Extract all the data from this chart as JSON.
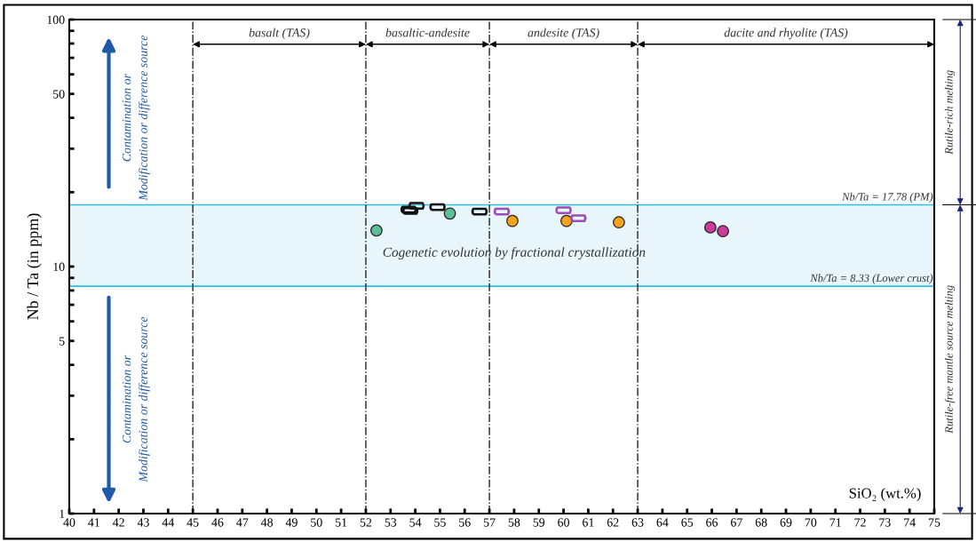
{
  "chart_data": {
    "type": "scatter",
    "xlabel": "SiO₂ (wt.%)",
    "ylabel": "Nb / Ta (in ppm)",
    "log": "y",
    "xlim": [
      40,
      75
    ],
    "xticks": [
      40,
      41,
      42,
      43,
      44,
      45,
      46,
      47,
      48,
      49,
      50,
      51,
      52,
      53,
      54,
      55,
      56,
      57,
      58,
      59,
      60,
      61,
      62,
      63,
      64,
      65,
      66,
      67,
      68,
      69,
      70,
      71,
      72,
      73,
      74,
      75
    ],
    "ylim": [
      1,
      100
    ],
    "yticks": [
      1,
      {
        "value": 2,
        "label": null
      },
      {
        "value": 3,
        "label": null
      },
      {
        "value": 4,
        "label": null
      },
      5,
      {
        "value": 6,
        "label": null
      },
      {
        "value": 7,
        "label": null
      },
      {
        "value": 8,
        "label": null
      },
      {
        "value": 9,
        "label": null
      },
      10,
      {
        "value": 20,
        "label": null
      },
      {
        "value": 30,
        "label": null
      },
      {
        "value": 40,
        "label": null
      },
      50,
      {
        "value": 60,
        "label": null
      },
      {
        "value": 70,
        "label": null
      },
      {
        "value": 80,
        "label": null
      },
      {
        "value": 90,
        "label": null
      },
      100
    ],
    "grid": false,
    "legend": false,
    "series": [
      {
        "color": "#5cbf98",
        "marker": "circle",
        "x": [
          52.43,
          55.4
        ],
        "values": [
          14.0,
          16.4
        ]
      },
      {
        "color": "#f5a31a",
        "marker": "circle",
        "x": [
          57.93,
          60.12,
          62.24
        ],
        "values": [
          15.3,
          15.3,
          15.1
        ]
      },
      {
        "color": "#111111",
        "marker": "square",
        "x": [
          53.73,
          53.8,
          54.05,
          54.9,
          56.6
        ],
        "values": [
          17.0,
          16.8,
          17.6,
          17.4,
          16.7
        ]
      },
      {
        "color": "#9b4db5",
        "marker": "square",
        "x": [
          57.5,
          60.0,
          60.6
        ],
        "values": [
          16.7,
          16.9,
          15.7
        ]
      },
      {
        "color": "#c83c9c",
        "marker": "circle",
        "x": [
          65.94,
          66.45
        ],
        "values": [
          14.4,
          13.9
        ]
      }
    ],
    "ref_lines": [
      {
        "axis": "y",
        "value": 17.78,
        "label": "Nb/Ta = 17.78 (PM)",
        "color": "#29c0ea",
        "line_style": "solid"
      },
      {
        "axis": "y",
        "value": 8.33,
        "label": "Nb/Ta = 8.33 (Lower crust)",
        "color": "#29c0ea",
        "line_style": "solid"
      },
      {
        "axis": "x",
        "value": 45,
        "color": "#222222",
        "line_style": "dashdot"
      },
      {
        "axis": "x",
        "value": 52,
        "color": "#222222",
        "line_style": "dashdot"
      },
      {
        "axis": "x",
        "value": 57,
        "color": "#222222",
        "line_style": "dashdot"
      },
      {
        "axis": "x",
        "value": 63,
        "color": "#222222",
        "line_style": "dashdot"
      }
    ],
    "bands": [
      {
        "axis": "y",
        "from": 8.33,
        "to": 17.78,
        "label": "Cogenetic evolution by fractional crystallization",
        "color": "#e8f5fb"
      }
    ],
    "annotations": [
      "Contamination or\nModification or difference source",
      "Contamination or\nModification or difference source",
      "Rutile-rich melting",
      "Rutile-free mantle source melting",
      "basalt (TAS)",
      "basaltic-andesite",
      "andesite (TAS)",
      "dacite and rhyolite (TAS)"
    ]
  }
}
